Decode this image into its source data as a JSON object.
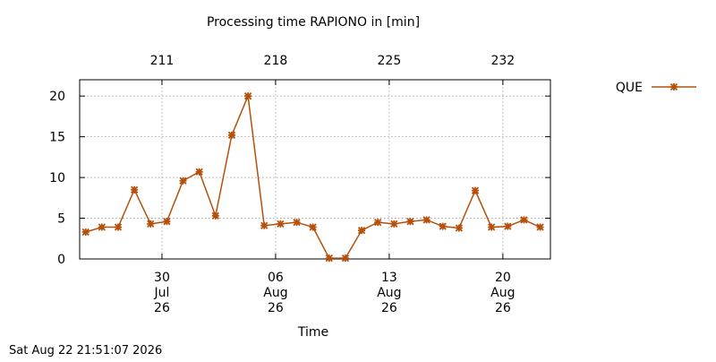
{
  "chart_data": {
    "type": "line",
    "title": "Processing time RAPIONO in [min]",
    "xlabel": "Time",
    "footer": "Sat Aug 22 21:51:07 2026",
    "x": [
      206.3,
      207.3,
      208.3,
      209.3,
      210.3,
      211.3,
      212.3,
      213.3,
      214.3,
      215.3,
      216.3,
      217.3,
      218.3,
      219.3,
      220.3,
      221.3,
      222.3,
      223.3,
      224.3,
      225.3,
      226.3,
      227.3,
      228.3,
      229.3,
      230.3,
      231.3,
      232.3,
      233.3,
      234.3
    ],
    "series": [
      {
        "name": "QUE",
        "color": "#b5500b",
        "values": [
          3.3,
          3.9,
          3.9,
          8.5,
          4.3,
          4.6,
          9.6,
          10.7,
          5.3,
          15.2,
          20.0,
          4.1,
          4.3,
          4.5,
          3.9,
          0.1,
          0.1,
          3.5,
          4.5,
          4.3,
          4.6,
          4.8,
          4.0,
          3.8,
          8.4,
          3.9,
          4.0,
          4.8,
          3.9
        ]
      }
    ],
    "xlim": [
      205.93,
      234.93
    ],
    "ylim": [
      0,
      22
    ],
    "yticks": [
      0,
      5,
      10,
      15,
      20
    ],
    "xticks": [
      {
        "value": 211,
        "label": "30\nJul\n26"
      },
      {
        "value": 218,
        "label": "06\nAug\n26"
      },
      {
        "value": 225,
        "label": "13\nAug\n26"
      },
      {
        "value": 232,
        "label": "20\nAug\n26"
      }
    ],
    "x2ticks": [
      211,
      218,
      225,
      232
    ],
    "grid": true,
    "legend": "right"
  }
}
